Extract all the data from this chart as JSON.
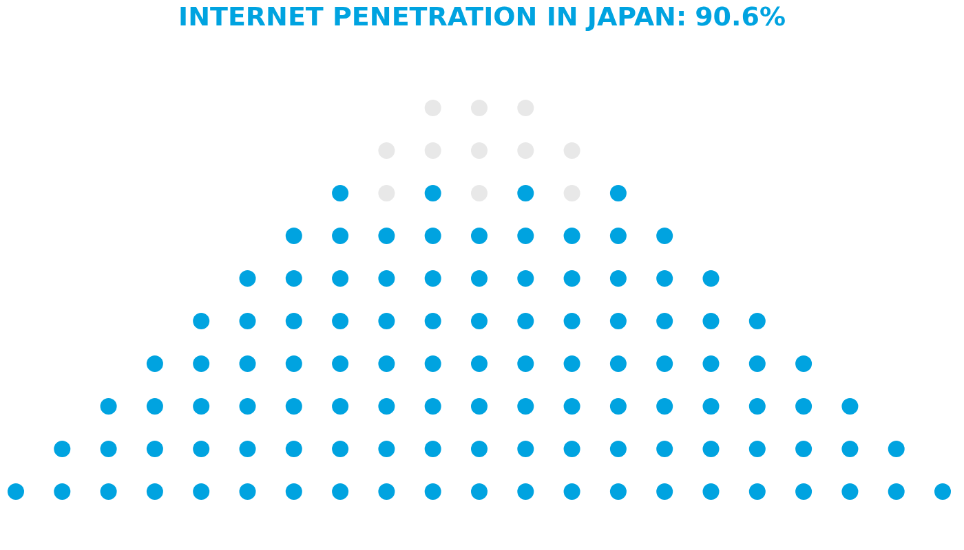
{
  "chart_data": {
    "type": "other",
    "title": "INTERNET PENETRATION IN JAPAN:",
    "values": [
      90.6
    ],
    "value_labels": [
      "90.6%"
    ],
    "color": "#00a3e0"
  }
}
